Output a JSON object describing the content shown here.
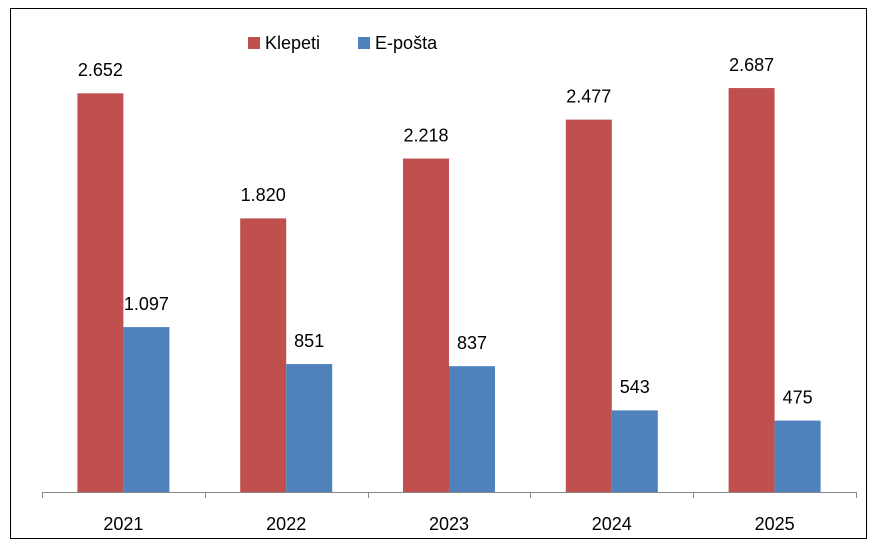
{
  "chart_data": {
    "type": "bar",
    "categories": [
      "2021",
      "2022",
      "2023",
      "2024",
      "2025"
    ],
    "series": [
      {
        "name": "Klepeti",
        "color": "#c0504d",
        "values": [
          2652,
          1820,
          2218,
          2477,
          2687
        ],
        "value_labels": [
          "2.652",
          "1.820",
          "2.218",
          "2.477",
          "2.687"
        ]
      },
      {
        "name": "E-pošta",
        "color": "#4f81bd",
        "values": [
          1097,
          851,
          837,
          543,
          475
        ],
        "value_labels": [
          "1.097",
          "851",
          "837",
          "543",
          "475"
        ]
      }
    ],
    "ylim": [
      0,
      3000
    ],
    "legend": "top"
  }
}
